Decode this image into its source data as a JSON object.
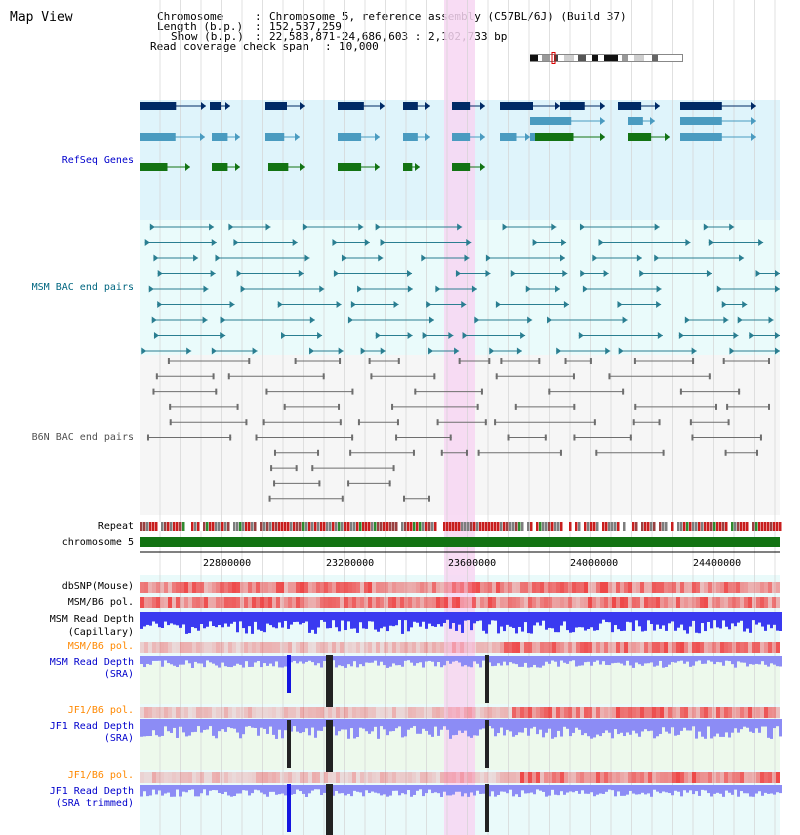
{
  "app": {
    "title": "Map View"
  },
  "header": {
    "chromosome_label": "Chromosome",
    "chromosome_value": "Chromosome 5, reference assembly (C57BL/6J) (Build 37)",
    "length_label": "Length (b.p.)",
    "length_value": "152,537,259",
    "show_label": "Show (b.p.)",
    "show_value": "22,583,871-24,686,603 : 2,102,733 bp",
    "coverage_label": "Read coverage check span",
    "coverage_value": "10,000",
    "sep": ":"
  },
  "tracks": {
    "refseq": {
      "label": "RefSeq Genes",
      "color": "#0000cc",
      "bg": "#dff4fb",
      "gene_color": "#002a66",
      "mid_color": "#4a9bc0",
      "green_color": "#137313"
    },
    "msm_bac": {
      "label": "MSM BAC end pairs",
      "color": "#006680",
      "bg": "#eafbfb",
      "line_color": "#2a7e91"
    },
    "b6n_bac": {
      "label": "B6N BAC end pairs",
      "color": "#505050",
      "bg": "#f6f6f6",
      "line_color": "#6e6e6e"
    },
    "repeat": {
      "label": "Repeat"
    },
    "chromosome": {
      "label": "chromosome 5",
      "color": "#137313"
    },
    "dbsnp": {
      "label": "dbSNP(Mouse)"
    },
    "msm_b6_pol_1": {
      "label": "MSM/B6 pol."
    },
    "msm_depth_cap": {
      "label": "MSM Read Depth",
      "label2": "(Capillary)",
      "color": "#0000ee"
    },
    "msm_b6_pol_2": {
      "label": "MSM/B6 pol.",
      "color": "#ff8800"
    },
    "msm_depth_sra": {
      "label": "MSM Read Depth",
      "label2": "(SRA)",
      "color": "#0000cc"
    },
    "jf1_b6_pol_1": {
      "label": "JF1/B6 pol.",
      "color": "#ff8800"
    },
    "jf1_depth_sra": {
      "label": "JF1 Read Depth",
      "label2": "(SRA)",
      "color": "#0000cc"
    },
    "jf1_b6_pol_2": {
      "label": "JF1/B6 pol.",
      "color": "#ff8800"
    },
    "jf1_depth_trim": {
      "label": "JF1 Read Depth",
      "label2": "(SRA trimmed)",
      "color": "#0000cc"
    }
  },
  "axis": {
    "ticks": [
      "22800000",
      "23200000",
      "23600000",
      "24000000",
      "24400000"
    ]
  },
  "colors": {
    "highlight": "#f7d6f2",
    "grid": "#d4d4d4",
    "snp_red": "#ee3333",
    "depth_blue": "#3a3af0",
    "depth_light": "#8c8cf5"
  }
}
